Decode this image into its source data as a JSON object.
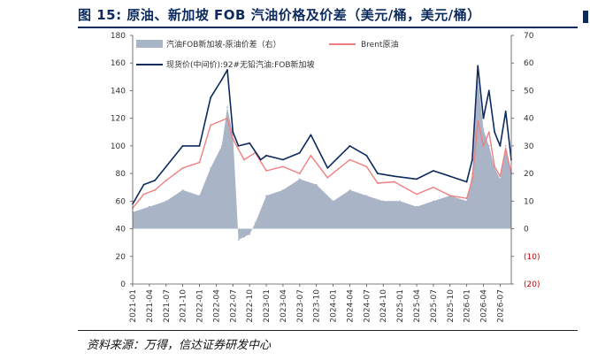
{
  "header": {
    "title": "图 15:  原油、新加坡 FOB 汽油价格及价差（美元/桶，美元/桶）"
  },
  "footer": {
    "source": "资料来源：万得，信达证券研发中心"
  },
  "colors": {
    "spread_area": "#a9b4c6",
    "brent": "#f08080",
    "fob": "#0c2a5e",
    "title": "#0c2a5e",
    "right_axis_negative": "#cc0000"
  },
  "chart_data": {
    "type": "line",
    "legend_position": "top-left",
    "grid": false,
    "x_range": [
      "2021-01",
      "2026-09"
    ],
    "x_ticks": [
      "2021-01",
      "2021-04",
      "2021-07",
      "2021-10",
      "2022-01",
      "2022-04",
      "2022-07",
      "2022-10",
      "2023-01",
      "2023-04",
      "2023-07",
      "2023-10",
      "2024-01",
      "2024-04",
      "2024-07",
      "2024-10",
      "2025-01",
      "2025-04",
      "2025-07",
      "2025-10",
      "2026-01",
      "2026-04",
      "2026-07"
    ],
    "y_left": {
      "min": 0,
      "max": 180,
      "ticks": [
        "0",
        "20",
        "40",
        "60",
        "80",
        "100",
        "120",
        "140",
        "160",
        "180"
      ]
    },
    "y_right": {
      "min": -20,
      "max": 70,
      "ticks": [
        "(20)",
        "(10)",
        "0",
        "10",
        "20",
        "30",
        "40",
        "50",
        "60",
        "70"
      ]
    },
    "series": [
      {
        "name": "汽油FOB新加坡-原油价差（右）",
        "type": "area",
        "axis": "right",
        "x": [
          "2021-01",
          "2021-04",
          "2021-07",
          "2021-10",
          "2022-01",
          "2022-03",
          "2022-05",
          "2022-06",
          "2022-07",
          "2022-08",
          "2022-09",
          "2022-10",
          "2022-11",
          "2023-01",
          "2023-04",
          "2023-07",
          "2023-10",
          "2024-01",
          "2024-04",
          "2024-07",
          "2024-10",
          "2025-01",
          "2025-04",
          "2025-07",
          "2025-10",
          "2026-01",
          "2026-02",
          "2026-03",
          "2026-04",
          "2026-05",
          "2026-06",
          "2026-07",
          "2026-08",
          "2026-09"
        ],
        "values": [
          6,
          8,
          10,
          14,
          12,
          22,
          30,
          44,
          34,
          -4,
          -3,
          -2,
          2,
          12,
          14,
          18,
          16,
          10,
          14,
          12,
          10,
          10,
          8,
          10,
          12,
          10,
          20,
          55,
          36,
          30,
          22,
          18,
          30,
          20
        ]
      },
      {
        "name": "Brent原油",
        "axis": "left",
        "x": [
          "2021-01",
          "2021-03",
          "2021-05",
          "2021-07",
          "2021-10",
          "2022-01",
          "2022-03",
          "2022-06",
          "2022-07",
          "2022-09",
          "2022-11",
          "2023-01",
          "2023-04",
          "2023-07",
          "2023-09",
          "2023-12",
          "2024-04",
          "2024-07",
          "2024-09",
          "2024-12",
          "2025-04",
          "2025-07",
          "2025-10",
          "2026-01",
          "2026-02",
          "2026-03",
          "2026-04",
          "2026-05",
          "2026-06",
          "2026-07",
          "2026-08",
          "2026-09"
        ],
        "values": [
          55,
          65,
          68,
          75,
          84,
          88,
          115,
          120,
          105,
          90,
          95,
          82,
          85,
          80,
          93,
          77,
          90,
          85,
          73,
          74,
          65,
          70,
          64,
          62,
          75,
          118,
          100,
          110,
          85,
          78,
          98,
          80
        ]
      },
      {
        "name": "现货价(中间价):92#无铅汽油:FOB新加坡",
        "axis": "left",
        "x": [
          "2021-01",
          "2021-03",
          "2021-05",
          "2021-07",
          "2021-10",
          "2022-01",
          "2022-03",
          "2022-05",
          "2022-06",
          "2022-07",
          "2022-08",
          "2022-10",
          "2022-12",
          "2023-01",
          "2023-04",
          "2023-07",
          "2023-09",
          "2023-12",
          "2024-04",
          "2024-07",
          "2024-09",
          "2024-12",
          "2025-04",
          "2025-07",
          "2025-10",
          "2026-01",
          "2026-02",
          "2026-03",
          "2026-04",
          "2026-05",
          "2026-06",
          "2026-07",
          "2026-08",
          "2026-09"
        ],
        "values": [
          58,
          72,
          75,
          85,
          100,
          100,
          135,
          148,
          155,
          110,
          100,
          102,
          90,
          93,
          90,
          95,
          108,
          84,
          100,
          93,
          80,
          78,
          76,
          82,
          78,
          74,
          90,
          158,
          120,
          140,
          110,
          100,
          125,
          90
        ]
      }
    ]
  }
}
